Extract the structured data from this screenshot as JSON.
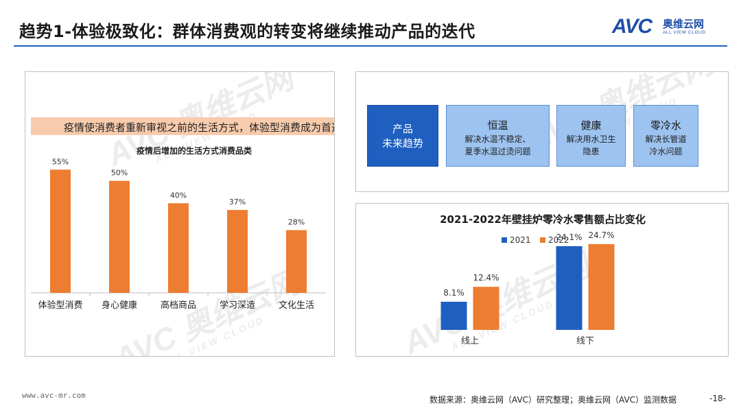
{
  "header": {
    "title": "趋势1-体验极致化：群体消费观的转变将继续推动产品的迭代",
    "logo_avc": "AVC",
    "logo_cn": "奥维云网",
    "logo_en": "ALL VIEW CLOUD"
  },
  "watermark": {
    "big": "AVC 奥维云网",
    "small": "ALL VIEW CLOUD"
  },
  "left_panel": {
    "banner": "疫情使消费者重新审视之前的生活方式，体验型消费成为首选"
  },
  "trend": {
    "main": [
      "产品",
      "未来趋势"
    ],
    "boxes": [
      {
        "heading": "恒温",
        "desc": [
          "解决水温不稳定、",
          "夏季水温过烫问题"
        ]
      },
      {
        "heading": "健康",
        "desc": [
          "解决用水卫生",
          "隐患"
        ]
      },
      {
        "heading": "零冷水",
        "desc": [
          "解决长管道",
          "冷水问题"
        ]
      }
    ]
  },
  "chart_data": [
    {
      "type": "bar",
      "title": "疫情后增加的生活方式消费品类",
      "categories": [
        "体验型消费",
        "身心健康",
        "高档商品",
        "学习深造",
        "文化生活"
      ],
      "values": [
        55,
        50,
        40,
        37,
        28
      ],
      "labels": [
        "55%",
        "50%",
        "40%",
        "37%",
        "28%"
      ],
      "unit": "%",
      "ylim": [
        0,
        60
      ],
      "color": "#ed7d31",
      "grid": false
    },
    {
      "type": "bar",
      "title": "2021-2022年壁挂炉零冷水零售额占比变化",
      "categories": [
        "线上",
        "线下"
      ],
      "series": [
        {
          "name": "2021",
          "values": [
            8.1,
            24.1
          ],
          "labels": [
            "8.1%",
            "24.1%"
          ],
          "color": "#1f5fbf"
        },
        {
          "name": "2022",
          "values": [
            12.4,
            24.7
          ],
          "labels": [
            "12.4%",
            "24.7%"
          ],
          "color": "#ed7d31"
        }
      ],
      "unit": "%",
      "ylim": [
        0,
        30
      ],
      "legend": "top-center",
      "grid": false
    }
  ],
  "footer": {
    "url": "www.avc-mr.com",
    "source": "数据来源：奥维云网（AVC）研究整理；奥维云网（AVC）监测数据",
    "page": "-18-"
  }
}
